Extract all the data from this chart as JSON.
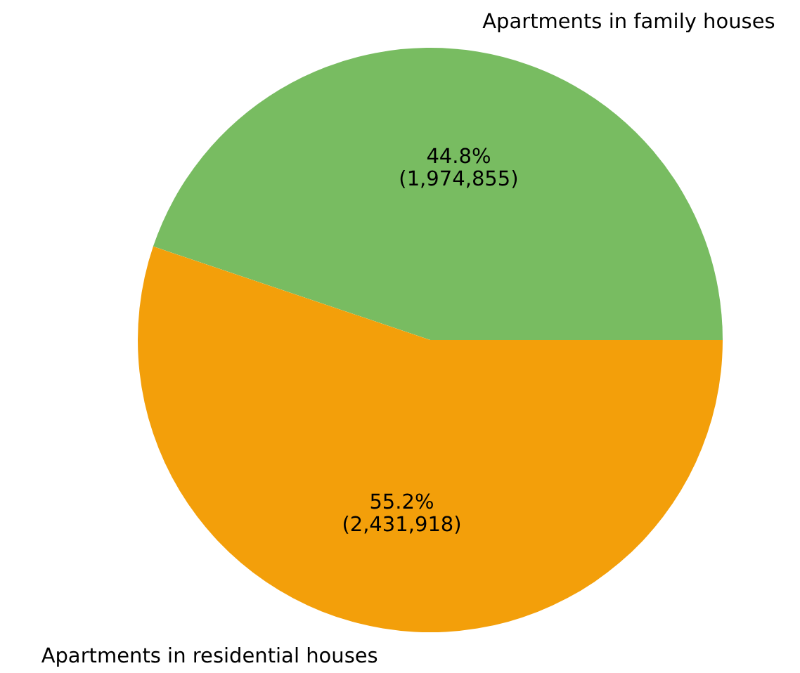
{
  "chart_data": {
    "type": "pie",
    "categories": [
      "Apartments in family houses",
      "Apartments in residential houses"
    ],
    "values": [
      1974855,
      2431918
    ],
    "colors": [
      "#78bc61",
      "#f39f0a"
    ],
    "value_labels": [
      "44.8%\n(1,974,855)",
      "55.2%\n(2,431,918)"
    ]
  }
}
